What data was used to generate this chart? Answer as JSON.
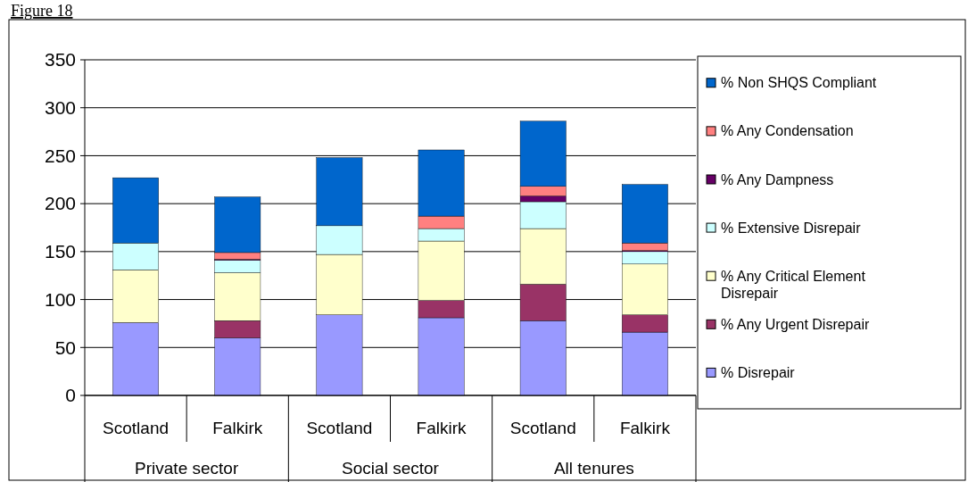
{
  "chart_data": {
    "type": "bar",
    "title": "Figure 18",
    "stacked": true,
    "categories": [
      "Scotland",
      "Falkirk",
      "Scotland",
      "Falkirk",
      "Scotland",
      "Falkirk"
    ],
    "annotations": [
      "Private sector",
      "Social sector",
      "All tenures"
    ],
    "series": [
      {
        "name": "% Disrepair",
        "color": "#9999ff",
        "values": [
          76,
          60,
          84,
          81,
          78,
          66
        ]
      },
      {
        "name": "% Any Urgent Disrepair",
        "color": "#993366",
        "values": [
          0,
          18,
          0,
          18,
          38,
          18
        ]
      },
      {
        "name": "% Any Critical Element Disrepair",
        "color": "#ffffcc",
        "values": [
          55,
          50,
          63,
          62,
          58,
          53
        ]
      },
      {
        "name": "% Extensive Disrepair",
        "color": "#ccffff",
        "values": [
          28,
          13,
          30,
          13,
          28,
          13
        ]
      },
      {
        "name": "% Any Dampness",
        "color": "#660066",
        "values": [
          0,
          1,
          0,
          0,
          6,
          1
        ]
      },
      {
        "name": "% Any Condensation",
        "color": "#ff8080",
        "values": [
          0,
          7,
          0,
          13,
          10,
          8
        ]
      },
      {
        "name": "% Non SHQS Compliant",
        "color": "#0066cc",
        "values": [
          68,
          58,
          71,
          69,
          68,
          61
        ]
      }
    ],
    "ylim": [
      0,
      350
    ],
    "yticks": [
      0,
      50,
      100,
      150,
      200,
      250,
      300,
      350
    ],
    "grid": "y",
    "legend": "right"
  }
}
